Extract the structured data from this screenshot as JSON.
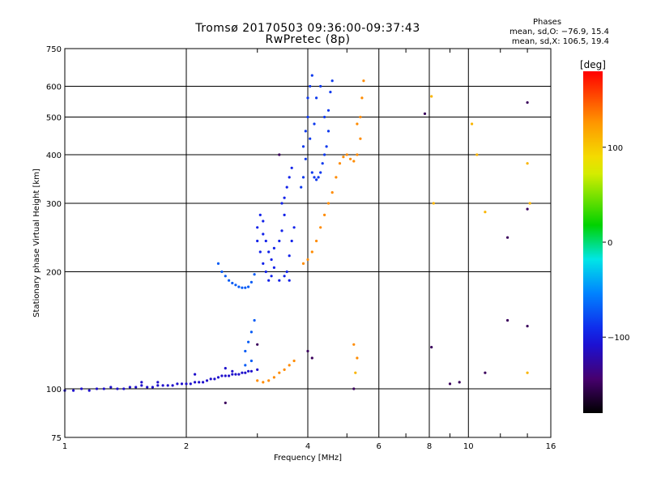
{
  "header": {
    "title": "Tromsø 20170503 09:36:00-09:37:43",
    "subtitle": "RwPretec (8p)"
  },
  "phases_box": {
    "title": "Phases",
    "line_o": "mean, sd,O: −76.9, 15.4",
    "line_x": "mean, sd,X: 106.5, 19.4"
  },
  "colorbar": {
    "label": "[deg]",
    "ticks": [
      "100",
      "0",
      "−100"
    ],
    "tick_values": [
      100,
      0,
      -100
    ],
    "range": [
      -180,
      180
    ]
  },
  "chart_data": {
    "type": "scatter",
    "xscale": "log",
    "yscale": "log",
    "xlabel": "Frequency [MHz]",
    "ylabel": "Stationary phase Virtual Height [km]",
    "xlim": [
      1,
      16
    ],
    "ylim": [
      75,
      750
    ],
    "xticks": [
      1,
      2,
      4,
      6,
      8,
      10,
      16
    ],
    "xtick_labels": [
      "1",
      "2",
      "4",
      "6",
      "8",
      "10",
      "16"
    ],
    "yticks": [
      75,
      100,
      200,
      300,
      400,
      500,
      600,
      750
    ],
    "ytick_labels": [
      "75",
      "100",
      "200",
      "300",
      "400",
      "500",
      "600",
      "750"
    ],
    "xgrid": [
      2,
      4,
      6,
      8,
      10
    ],
    "ygrid": [
      100,
      200,
      300,
      400,
      500,
      600
    ],
    "grid": true,
    "series": [
      {
        "phase_deg": -110,
        "points": [
          [
            1.0,
            99
          ],
          [
            1.05,
            99
          ],
          [
            1.1,
            100
          ],
          [
            1.15,
            99
          ],
          [
            1.2,
            100
          ],
          [
            1.25,
            100
          ],
          [
            1.3,
            101
          ],
          [
            1.35,
            100
          ],
          [
            1.4,
            100
          ],
          [
            1.45,
            101
          ],
          [
            1.5,
            101
          ],
          [
            1.55,
            102
          ],
          [
            1.6,
            101
          ],
          [
            1.65,
            101
          ],
          [
            1.7,
            102
          ],
          [
            1.75,
            102
          ],
          [
            1.8,
            102
          ],
          [
            1.85,
            102
          ],
          [
            1.9,
            103
          ],
          [
            1.95,
            103
          ],
          [
            2.0,
            103
          ],
          [
            2.05,
            103
          ],
          [
            2.1,
            104
          ],
          [
            2.15,
            104
          ],
          [
            2.2,
            104
          ],
          [
            2.25,
            105
          ],
          [
            2.3,
            106
          ],
          [
            2.35,
            106
          ],
          [
            2.4,
            107
          ],
          [
            2.45,
            108
          ],
          [
            2.5,
            108
          ],
          [
            2.55,
            108
          ],
          [
            2.6,
            109
          ],
          [
            2.65,
            109
          ],
          [
            2.7,
            109
          ],
          [
            2.75,
            110
          ],
          [
            2.8,
            110
          ],
          [
            2.85,
            111
          ],
          [
            2.9,
            111
          ],
          [
            3.0,
            112
          ],
          [
            1.55,
            104
          ],
          [
            1.7,
            104
          ],
          [
            2.1,
            109
          ],
          [
            2.5,
            113
          ],
          [
            2.6,
            111
          ]
        ]
      },
      {
        "phase_deg": -70,
        "points": [
          [
            2.4,
            210
          ],
          [
            2.45,
            200
          ],
          [
            2.5,
            195
          ],
          [
            2.55,
            190
          ],
          [
            2.6,
            187
          ],
          [
            2.65,
            185
          ],
          [
            2.7,
            183
          ],
          [
            2.75,
            182
          ],
          [
            2.8,
            182
          ],
          [
            2.85,
            183
          ],
          [
            2.9,
            188
          ],
          [
            2.95,
            197
          ],
          [
            2.8,
            125
          ],
          [
            2.85,
            132
          ],
          [
            2.9,
            140
          ],
          [
            2.95,
            150
          ],
          [
            2.9,
            118
          ],
          [
            2.8,
            115
          ]
        ]
      },
      {
        "phase_deg": -95,
        "points": [
          [
            3.0,
            260
          ],
          [
            3.05,
            280
          ],
          [
            3.1,
            250
          ],
          [
            3.0,
            240
          ],
          [
            3.05,
            225
          ],
          [
            3.1,
            210
          ],
          [
            3.15,
            200
          ],
          [
            3.2,
            190
          ],
          [
            3.25,
            195
          ],
          [
            3.3,
            205
          ],
          [
            3.1,
            270
          ],
          [
            3.15,
            240
          ],
          [
            3.2,
            225
          ],
          [
            3.25,
            215
          ],
          [
            3.3,
            230
          ],
          [
            3.4,
            240
          ],
          [
            3.45,
            255
          ],
          [
            3.5,
            280
          ],
          [
            3.45,
            300
          ],
          [
            3.5,
            310
          ],
          [
            3.55,
            330
          ],
          [
            3.6,
            350
          ],
          [
            3.65,
            370
          ],
          [
            3.55,
            200
          ],
          [
            3.6,
            220
          ],
          [
            3.65,
            240
          ],
          [
            3.7,
            260
          ],
          [
            3.6,
            190
          ],
          [
            3.5,
            195
          ],
          [
            3.4,
            190
          ]
        ]
      },
      {
        "phase_deg": -85,
        "points": [
          [
            3.9,
            420
          ],
          [
            3.95,
            460
          ],
          [
            4.0,
            500
          ],
          [
            4.0,
            560
          ],
          [
            4.05,
            600
          ],
          [
            4.1,
            640
          ],
          [
            3.95,
            390
          ],
          [
            4.1,
            360
          ],
          [
            4.15,
            350
          ],
          [
            4.2,
            345
          ],
          [
            4.25,
            350
          ],
          [
            4.3,
            360
          ],
          [
            4.35,
            380
          ],
          [
            4.4,
            400
          ],
          [
            4.45,
            420
          ],
          [
            4.5,
            460
          ],
          [
            4.5,
            520
          ],
          [
            4.55,
            580
          ],
          [
            4.6,
            620
          ],
          [
            4.05,
            440
          ],
          [
            4.15,
            480
          ],
          [
            4.2,
            560
          ],
          [
            4.3,
            600
          ],
          [
            4.4,
            500
          ],
          [
            3.9,
            350
          ],
          [
            3.85,
            330
          ]
        ]
      },
      {
        "phase_deg": 130,
        "points": [
          [
            3.0,
            105
          ],
          [
            3.1,
            104
          ],
          [
            3.2,
            105
          ],
          [
            3.3,
            107
          ],
          [
            3.4,
            110
          ],
          [
            3.5,
            112
          ],
          [
            3.6,
            115
          ],
          [
            3.7,
            118
          ],
          [
            3.9,
            210
          ],
          [
            4.0,
            215
          ],
          [
            4.1,
            225
          ],
          [
            4.2,
            240
          ],
          [
            4.3,
            260
          ],
          [
            4.4,
            280
          ],
          [
            4.5,
            300
          ],
          [
            4.6,
            320
          ],
          [
            4.7,
            350
          ],
          [
            4.8,
            380
          ],
          [
            4.9,
            395
          ],
          [
            5.0,
            400
          ],
          [
            5.1,
            390
          ],
          [
            5.2,
            385
          ],
          [
            5.3,
            400
          ],
          [
            5.4,
            440
          ],
          [
            5.4,
            500
          ],
          [
            5.45,
            560
          ],
          [
            5.5,
            620
          ],
          [
            5.3,
            480
          ],
          [
            5.2,
            130
          ],
          [
            5.3,
            120
          ]
        ]
      },
      {
        "phase_deg": 110,
        "points": [
          [
            5.25,
            110
          ],
          [
            8.1,
            565
          ],
          [
            8.2,
            300
          ],
          [
            10.2,
            480
          ],
          [
            10.5,
            400
          ],
          [
            11.0,
            285
          ],
          [
            14.0,
            380
          ],
          [
            14.2,
            300
          ],
          [
            14.0,
            110
          ]
        ]
      },
      {
        "phase_deg": -150,
        "points": [
          [
            2.5,
            92
          ],
          [
            4.0,
            125
          ],
          [
            5.2,
            100
          ],
          [
            7.8,
            510
          ],
          [
            8.1,
            128
          ],
          [
            9.0,
            103
          ],
          [
            9.5,
            104
          ],
          [
            11.0,
            110
          ],
          [
            12.5,
            245
          ],
          [
            12.5,
            150
          ],
          [
            14.0,
            545
          ],
          [
            14.0,
            290
          ],
          [
            14.0,
            145
          ],
          [
            3.4,
            400
          ],
          [
            3.0,
            130
          ],
          [
            4.1,
            120
          ]
        ]
      }
    ]
  }
}
